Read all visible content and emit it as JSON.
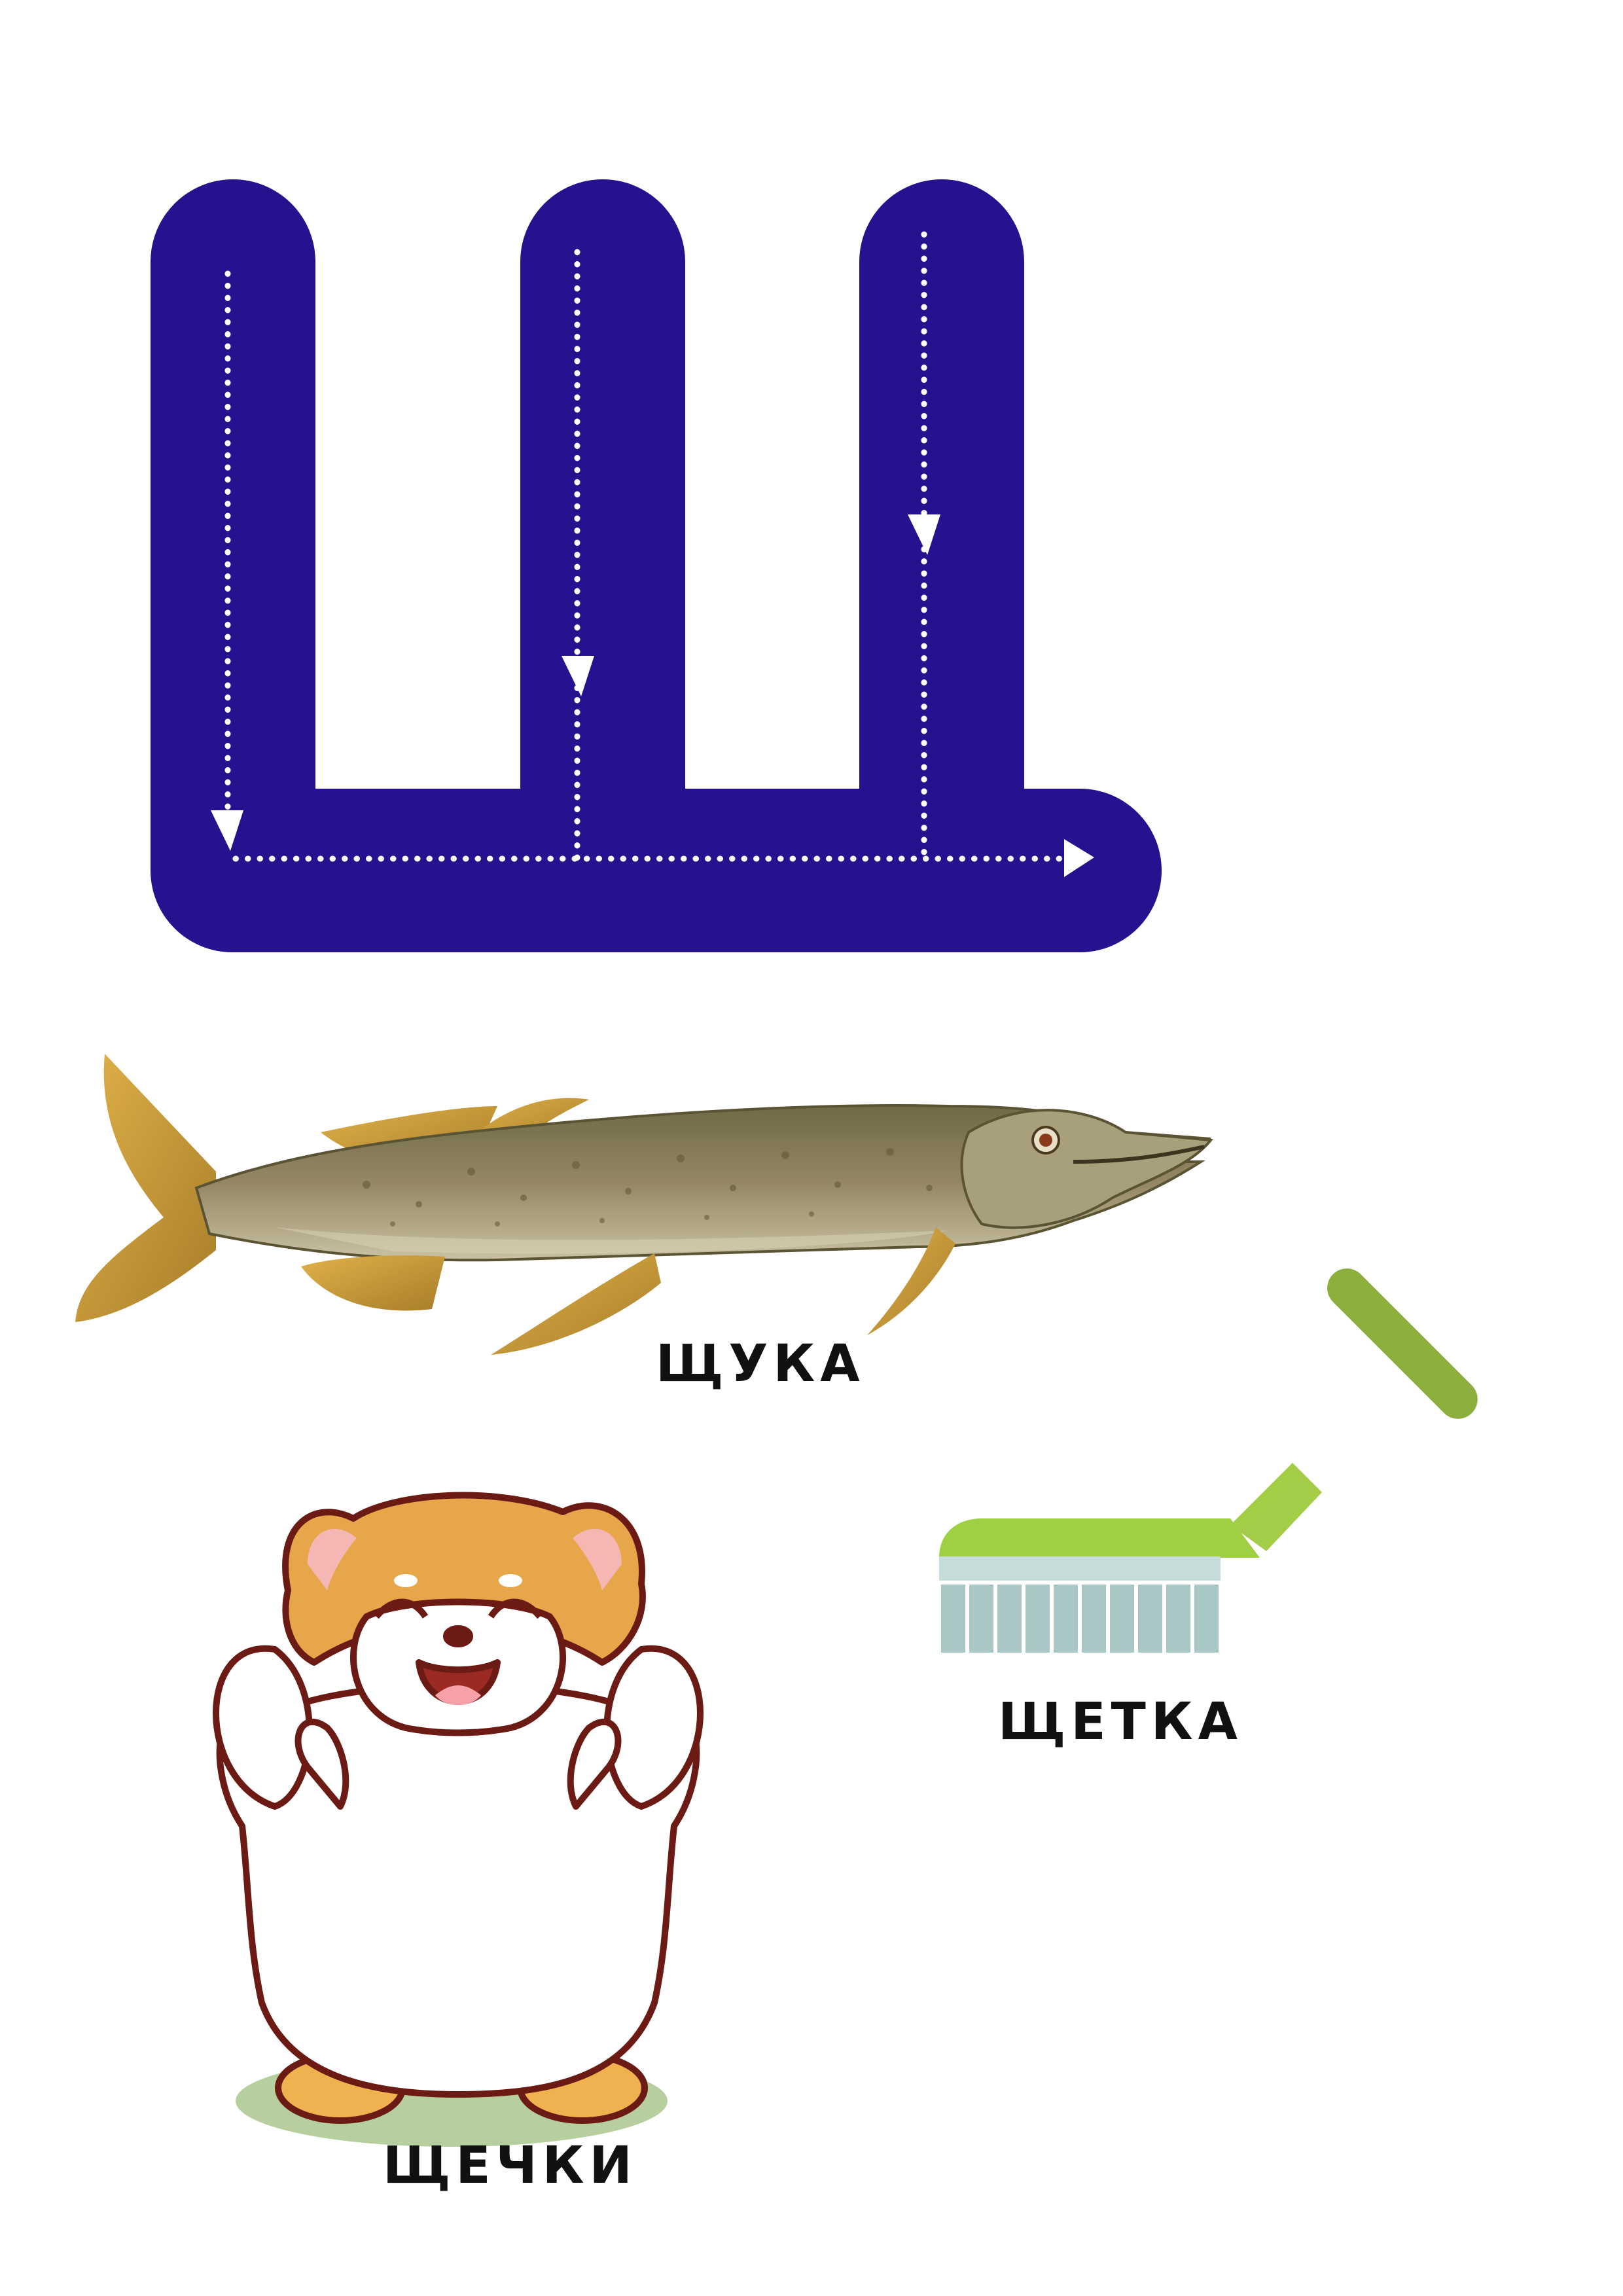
{
  "letter": {
    "glyph": "Ш",
    "fill_color": "#24128f",
    "guide_color": "#ffffff"
  },
  "items": [
    {
      "label": "ЩУКА",
      "picture": "pike-fish"
    },
    {
      "label": "ЩЕТКА",
      "picture": "scrub-brush"
    },
    {
      "label": "ЩЕЧКИ",
      "picture": "hamster"
    }
  ],
  "colors": {
    "brush_green": "#8ebf3a",
    "brush_bristles": "#a9c7c4",
    "fish_body": "#8a7d55",
    "fish_fin": "#d6a23c",
    "hamster_fur": "#e8a64a",
    "hamster_outline": "#6b1a14"
  }
}
